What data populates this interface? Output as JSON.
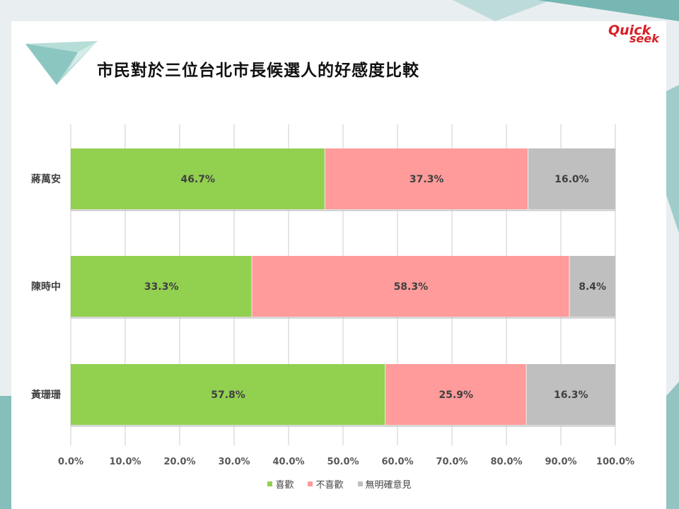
{
  "slide": {
    "title": "市民對於三位台北市長候選人的好感度比較",
    "logo_line1": "Quick",
    "logo_line2": "seek"
  },
  "colors": {
    "like": "#92d050",
    "dislike": "#ff9b9b",
    "no_opinion": "#bfbfbf",
    "grid": "#d9d9d9",
    "accent_teal": "#5aa9a4"
  },
  "chart_data": {
    "type": "bar",
    "orientation": "horizontal",
    "stacked": true,
    "categories": [
      "蔣萬安",
      "陳時中",
      "黃珊珊"
    ],
    "series": [
      {
        "name": "喜歡",
        "values": [
          46.7,
          33.3,
          57.8
        ],
        "labels": [
          "46.7%",
          "33.3%",
          "57.8%"
        ]
      },
      {
        "name": "不喜歡",
        "values": [
          37.3,
          58.3,
          25.9
        ],
        "labels": [
          "37.3%",
          "58.3%",
          "25.9%"
        ]
      },
      {
        "name": "無明確意見",
        "values": [
          16.0,
          8.4,
          16.3
        ],
        "labels": [
          "16.0%",
          "8.4%",
          "16.3%"
        ]
      }
    ],
    "x_ticks": [
      "0.0%",
      "10.0%",
      "20.0%",
      "30.0%",
      "40.0%",
      "50.0%",
      "60.0%",
      "70.0%",
      "80.0%",
      "90.0%",
      "100.0%"
    ],
    "xlim": [
      0,
      100
    ],
    "grid": true,
    "legend_position": "bottom"
  }
}
